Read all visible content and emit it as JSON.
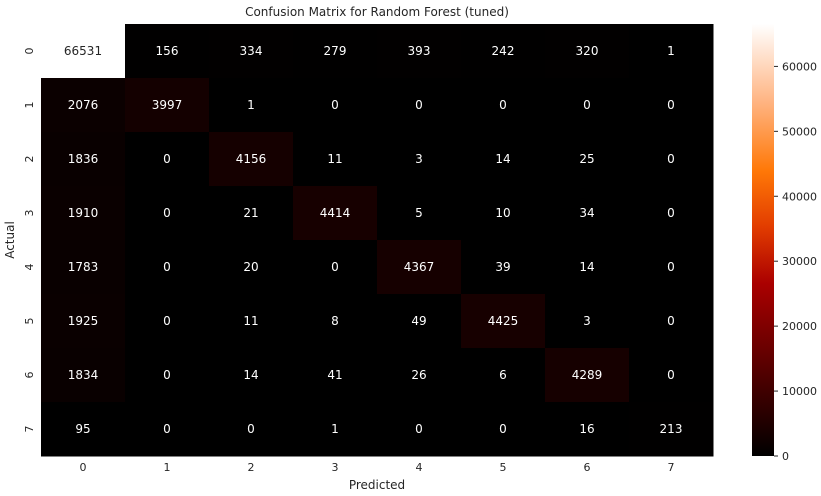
{
  "chart_data": {
    "type": "heatmap",
    "title": "Confusion Matrix for Random Forest (tuned)",
    "xlabel": "Predicted",
    "ylabel": "Actual",
    "x_categories": [
      "0",
      "1",
      "2",
      "3",
      "4",
      "5",
      "6",
      "7"
    ],
    "y_categories": [
      "0",
      "1",
      "2",
      "3",
      "4",
      "5",
      "6",
      "7"
    ],
    "values": [
      [
        66531,
        156,
        334,
        279,
        393,
        242,
        320,
        1
      ],
      [
        2076,
        3997,
        1,
        0,
        0,
        0,
        0,
        0
      ],
      [
        1836,
        0,
        4156,
        11,
        3,
        14,
        25,
        0
      ],
      [
        1910,
        0,
        21,
        4414,
        5,
        10,
        34,
        0
      ],
      [
        1783,
        0,
        20,
        0,
        4367,
        39,
        14,
        0
      ],
      [
        1925,
        0,
        11,
        8,
        49,
        4425,
        3,
        0
      ],
      [
        1834,
        0,
        14,
        41,
        26,
        6,
        4289,
        0
      ],
      [
        95,
        0,
        0,
        1,
        0,
        0,
        16,
        213
      ]
    ],
    "colormap": "gist_heat",
    "colorbar": {
      "range": [
        0,
        66531
      ],
      "ticks": [
        0,
        10000,
        20000,
        30000,
        40000,
        50000,
        60000
      ]
    },
    "grid": false,
    "legend": "colorbar-right"
  }
}
